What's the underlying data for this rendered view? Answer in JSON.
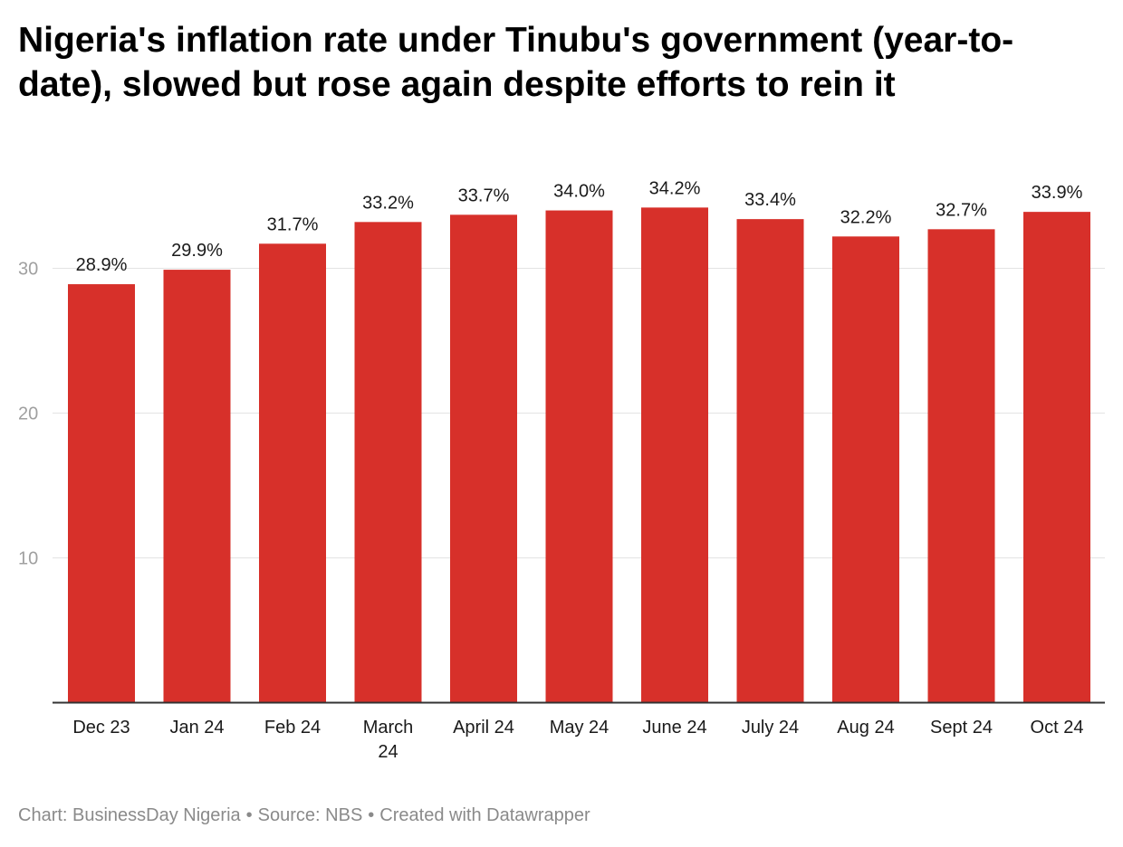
{
  "title": "Nigeria's inflation rate under Tinubu's government (year-to-date), slowed but rose again despite efforts to rein it",
  "chart_data": {
    "type": "bar",
    "categories": [
      "Dec 23",
      "Jan 24",
      "Feb 24",
      [
        "March",
        "24"
      ],
      "April 24",
      "May 24",
      "June 24",
      "July 24",
      "Aug 24",
      "Sept 24",
      "Oct 24"
    ],
    "values": [
      28.9,
      29.9,
      31.7,
      33.2,
      33.7,
      34.0,
      34.2,
      33.4,
      32.2,
      32.7,
      33.9
    ],
    "value_labels": [
      "28.9%",
      "29.9%",
      "31.7%",
      "33.2%",
      "33.7%",
      "34.0%",
      "34.2%",
      "33.4%",
      "32.2%",
      "32.7%",
      "33.9%"
    ],
    "yticks": [
      10,
      20,
      30
    ],
    "ylim": [
      0,
      37.6
    ],
    "grid": true,
    "bar_color": "#d7302a"
  },
  "footer": {
    "chart": "Chart: BusinessDay Nigeria",
    "source": "Source: NBS",
    "created": "Created with Datawrapper"
  }
}
